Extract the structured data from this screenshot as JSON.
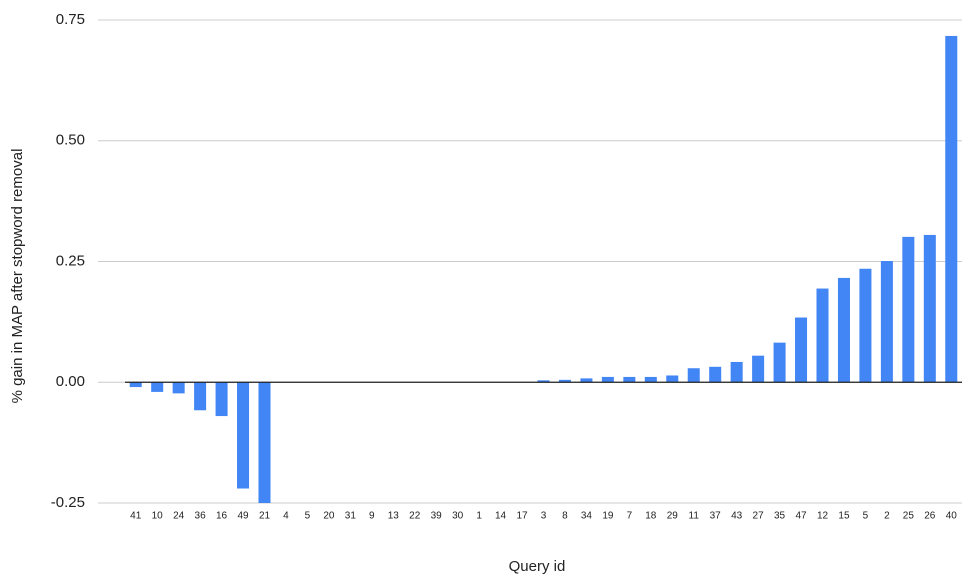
{
  "chart_data": {
    "type": "bar",
    "x_label": "Query id",
    "y_label": "% gain in MAP after stopword removal",
    "categories": [
      "41",
      "10",
      "24",
      "36",
      "16",
      "49",
      "21",
      "4",
      "5",
      "20",
      "31",
      "9",
      "13",
      "22",
      "39",
      "30",
      "1",
      "14",
      "17",
      "3",
      "8",
      "34",
      "19",
      "7",
      "18",
      "29",
      "11",
      "37",
      "43",
      "27",
      "35",
      "47",
      "12",
      "15",
      "5",
      "2",
      "25",
      "26",
      "40"
    ],
    "values": [
      -0.01,
      -0.02,
      -0.023,
      -0.058,
      -0.07,
      -0.22,
      -0.26,
      0,
      0,
      0,
      0,
      0,
      0,
      0,
      0,
      0,
      0,
      0,
      0,
      0.004,
      0.005,
      0.008,
      0.011,
      0.011,
      0.011,
      0.014,
      0.029,
      0.032,
      0.042,
      0.055,
      0.082,
      0.134,
      0.194,
      0.216,
      0.235,
      0.251,
      0.301,
      0.305,
      0.717
    ],
    "color": "#4285f4",
    "ylim": [
      -0.25,
      0.75
    ],
    "yticks": [
      -0.25,
      {
        "value": 0,
        "label": "0.00"
      },
      0.25,
      {
        "value": 0.5,
        "label": "0.50"
      },
      0.75
    ],
    "grid": true
  }
}
